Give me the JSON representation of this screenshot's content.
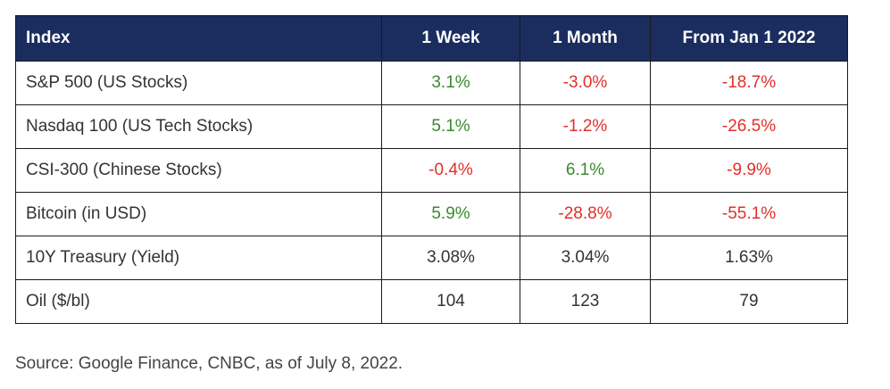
{
  "table": {
    "headers": [
      "Index",
      "1 Week",
      "1 Month",
      "From Jan 1 2022"
    ],
    "rows": [
      {
        "name": "S&P 500 (US Stocks)",
        "week": "3.1%",
        "month": "-3.0%",
        "jan": "-18.7%",
        "week_tone": "pos",
        "month_tone": "neg",
        "jan_tone": "neg"
      },
      {
        "name": "Nasdaq 100 (US Tech Stocks)",
        "week": "5.1%",
        "month": "-1.2%",
        "jan": "-26.5%",
        "week_tone": "pos",
        "month_tone": "neg",
        "jan_tone": "neg"
      },
      {
        "name": "CSI-300 (Chinese Stocks)",
        "week": "-0.4%",
        "month": "6.1%",
        "jan": "-9.9%",
        "week_tone": "neg",
        "month_tone": "pos",
        "jan_tone": "neg"
      },
      {
        "name": "Bitcoin (in USD)",
        "week": "5.9%",
        "month": "-28.8%",
        "jan": "-55.1%",
        "week_tone": "pos",
        "month_tone": "neg",
        "jan_tone": "neg"
      },
      {
        "name": "10Y Treasury (Yield)",
        "week": "3.08%",
        "month": "3.04%",
        "jan": "1.63%",
        "week_tone": "neutral",
        "month_tone": "neutral",
        "jan_tone": "neutral"
      },
      {
        "name": "Oil ($/bl)",
        "week": "104",
        "month": "123",
        "jan": "79",
        "week_tone": "neutral",
        "month_tone": "neutral",
        "jan_tone": "neutral"
      }
    ]
  },
  "source": "Source: Google Finance, CNBC, as of July 8, 2022.",
  "colors": {
    "header_bg": "#1a2d5e",
    "header_text": "#ffffff",
    "positive": "#3a8a2e",
    "negative": "#e0302a",
    "neutral": "#333333",
    "border": "#1a1a1a"
  }
}
